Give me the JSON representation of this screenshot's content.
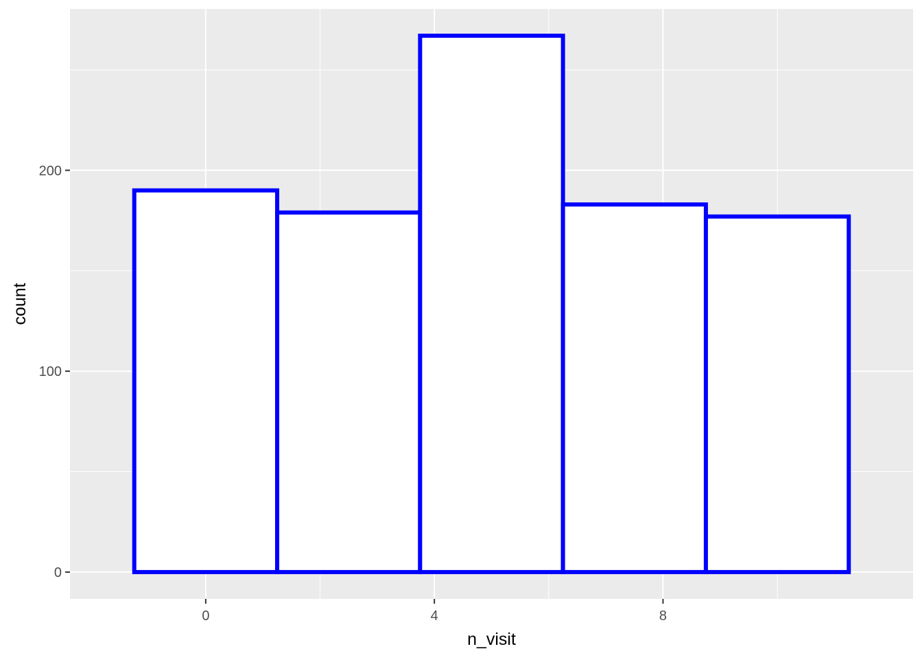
{
  "chart_data": {
    "type": "bar",
    "title": "",
    "xlabel": "n_visit",
    "ylabel": "count",
    "bins": [
      {
        "x_min": -1.25,
        "x_max": 1.25,
        "count": 190
      },
      {
        "x_min": 1.25,
        "x_max": 3.75,
        "count": 179
      },
      {
        "x_min": 3.75,
        "x_max": 6.25,
        "count": 267
      },
      {
        "x_min": 6.25,
        "x_max": 8.75,
        "count": 183
      },
      {
        "x_min": 8.75,
        "x_max": 11.25,
        "count": 177
      }
    ],
    "xlim": [
      -2.375,
      12.375
    ],
    "ylim": [
      -13.35,
      280.35
    ],
    "x_ticks": [
      0,
      4,
      8
    ],
    "x_tick_labels": [
      "0",
      "4",
      "8"
    ],
    "x_minor_ticks": [
      2,
      6,
      10
    ],
    "y_ticks": [
      0,
      100,
      200
    ],
    "y_tick_labels": [
      "0",
      "100",
      "200"
    ],
    "y_minor_ticks": [
      50,
      150,
      250
    ],
    "grid": true,
    "panel_background": "#EBEBEB",
    "grid_color": "#FFFFFF",
    "bar_fill": "#FFFFFF",
    "bar_outline": "#0000FF"
  }
}
